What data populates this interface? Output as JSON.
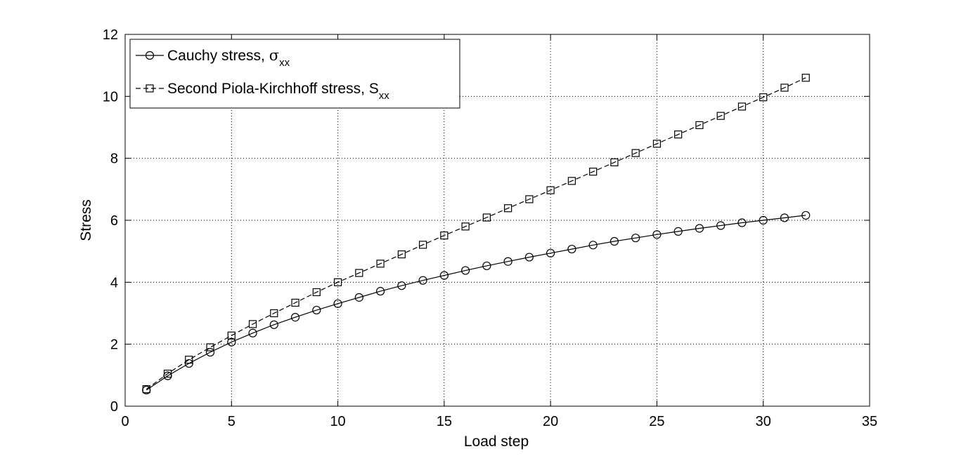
{
  "chart_data": {
    "type": "line",
    "title": "",
    "xlabel": "Load step",
    "ylabel": "Stress",
    "xlim": [
      0,
      35
    ],
    "ylim": [
      0,
      12
    ],
    "xticks": [
      0,
      5,
      10,
      15,
      20,
      25,
      30,
      35
    ],
    "yticks": [
      0,
      2,
      4,
      6,
      8,
      10,
      12
    ],
    "xtick_labels": [
      "0",
      "5",
      "10",
      "15",
      "20",
      "25",
      "30",
      "35"
    ],
    "ytick_labels": [
      "0",
      "2",
      "4",
      "6",
      "8",
      "10",
      "12"
    ],
    "grid": true,
    "legend_position": "top-left",
    "x": [
      1,
      2,
      3,
      4,
      5,
      6,
      7,
      8,
      9,
      10,
      11,
      12,
      13,
      14,
      15,
      16,
      17,
      18,
      19,
      20,
      21,
      22,
      23,
      24,
      25,
      26,
      27,
      28,
      29,
      30,
      31,
      32
    ],
    "series": [
      {
        "legend_prefix": "Cauchy stress, ",
        "legend_symbol": "σ",
        "legend_subscript": "xx",
        "line_style": "solid",
        "marker": "circle",
        "color": "#000000",
        "values": [
          0.52,
          0.98,
          1.38,
          1.74,
          2.07,
          2.36,
          2.63,
          2.87,
          3.1,
          3.31,
          3.51,
          3.71,
          3.89,
          4.06,
          4.22,
          4.38,
          4.53,
          4.67,
          4.81,
          4.94,
          5.07,
          5.2,
          5.32,
          5.43,
          5.54,
          5.64,
          5.74,
          5.83,
          5.92,
          6.0,
          6.08,
          6.16
        ]
      },
      {
        "legend_prefix": "Second Piola-Kirchhoff stress, ",
        "legend_symbol": "S",
        "legend_subscript": "xx",
        "line_style": "dashed",
        "marker": "square",
        "color": "#000000",
        "values": [
          0.55,
          1.05,
          1.5,
          1.9,
          2.28,
          2.65,
          3.0,
          3.34,
          3.68,
          4.0,
          4.3,
          4.6,
          4.9,
          5.21,
          5.51,
          5.8,
          6.09,
          6.39,
          6.68,
          6.97,
          7.27,
          7.57,
          7.87,
          8.17,
          8.47,
          8.77,
          9.07,
          9.37,
          9.67,
          9.97,
          10.28,
          10.6
        ]
      }
    ]
  }
}
